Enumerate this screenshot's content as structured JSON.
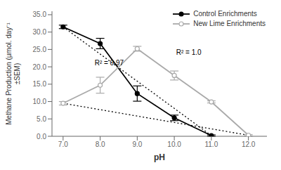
{
  "chart_data": {
    "type": "line",
    "xlabel": "pH",
    "ylabel": "Methane Production (μmol. day⁻¹\n±SEM)",
    "xlim": [
      6.7,
      12.5
    ],
    "ylim": [
      0,
      36
    ],
    "xticks": [
      {
        "value": 7.0,
        "label": "7.0"
      },
      {
        "value": 8.0,
        "label": "8.0"
      },
      {
        "value": 9.0,
        "label": "9.0"
      },
      {
        "value": 10.0,
        "label": "10.0"
      },
      {
        "value": 11.0,
        "label": "11.0"
      },
      {
        "value": 12.0,
        "label": "12.0"
      }
    ],
    "yticks": [
      {
        "value": 0.0,
        "label": "0.0"
      },
      {
        "value": 5.0,
        "label": "5.0"
      },
      {
        "value": 10.0,
        "label": "10.0"
      },
      {
        "value": 15.0,
        "label": "15.0"
      },
      {
        "value": 20.0,
        "label": "20.0"
      },
      {
        "value": 25.0,
        "label": "25.0"
      },
      {
        "value": 30.0,
        "label": "30.0"
      },
      {
        "value": 35.0,
        "label": "35.0"
      }
    ],
    "grid": false,
    "legend": "upper right",
    "series": [
      {
        "name": "Control Enrichments",
        "color": "#000000",
        "marker": "circle",
        "line_style": "solid",
        "x": [
          7.0,
          8.0,
          9.0,
          10.0,
          11.0
        ],
        "values": [
          31.5,
          26.7,
          12.3,
          5.3,
          0.2
        ],
        "errors": [
          0.5,
          1.5,
          2.2,
          0.8,
          0.2
        ]
      },
      {
        "name": "New Lime Enrichments",
        "color": "#aaaaaa",
        "marker": "open_circle",
        "line_style": "solid",
        "x": [
          7.0,
          8.0,
          9.0,
          10.0,
          11.0,
          12.0
        ],
        "values": [
          9.5,
          14.7,
          25.2,
          17.5,
          9.9,
          0.3
        ],
        "errors": [
          0.5,
          2.3,
          0.7,
          1.3,
          0.3,
          0.2
        ]
      }
    ],
    "trend_lines": [
      {
        "color": "#000000",
        "line_style": "dotted",
        "x": [
          7.0,
          11.0
        ],
        "values": [
          31.5,
          0.2
        ]
      },
      {
        "color": "#000000",
        "line_style": "dotted",
        "x": [
          7.0,
          12.0
        ],
        "values": [
          9.5,
          0.3
        ]
      }
    ],
    "annotations": [
      {
        "text": "R² = 1.0",
        "x": 10.05,
        "y": 23.5
      },
      {
        "text": "R² = 0.97",
        "x": 7.85,
        "y": 20.5
      }
    ]
  }
}
